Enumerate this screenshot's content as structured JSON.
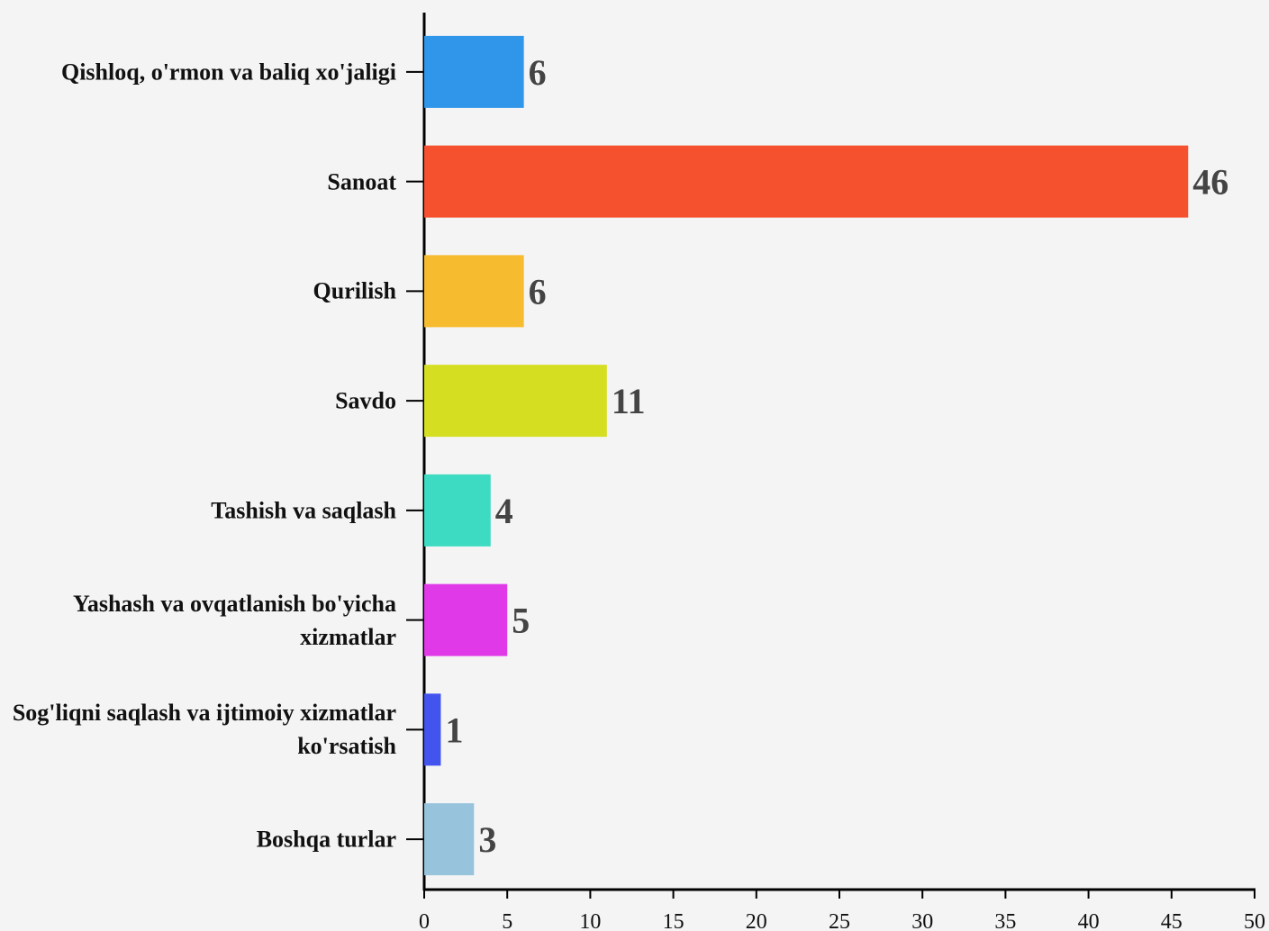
{
  "chart_data": {
    "type": "hbar",
    "categories": [
      "Qishloq, o'rmon va baliq xo'jaligi",
      "Sanoat",
      "Qurilish",
      "Savdo",
      "Tashish va saqlash",
      "Yashash va ovqatlanish bo'yicha xizmatlar",
      "Sog'liqni saqlash va ijtimoiy xizmatlar ko'rsatish",
      "Boshqa turlar"
    ],
    "values": [
      6,
      46,
      6,
      11,
      4,
      5,
      1,
      3
    ],
    "colors": [
      "#3096ea",
      "#f6512e",
      "#f6bb2e",
      "#d6de22",
      "#3ddbc2",
      "#e03ae8",
      "#4353ee",
      "#98c3dd"
    ],
    "xlim": [
      0,
      50
    ],
    "xticks": [
      0,
      5,
      10,
      15,
      20,
      25,
      30,
      35,
      40,
      45,
      50
    ]
  }
}
